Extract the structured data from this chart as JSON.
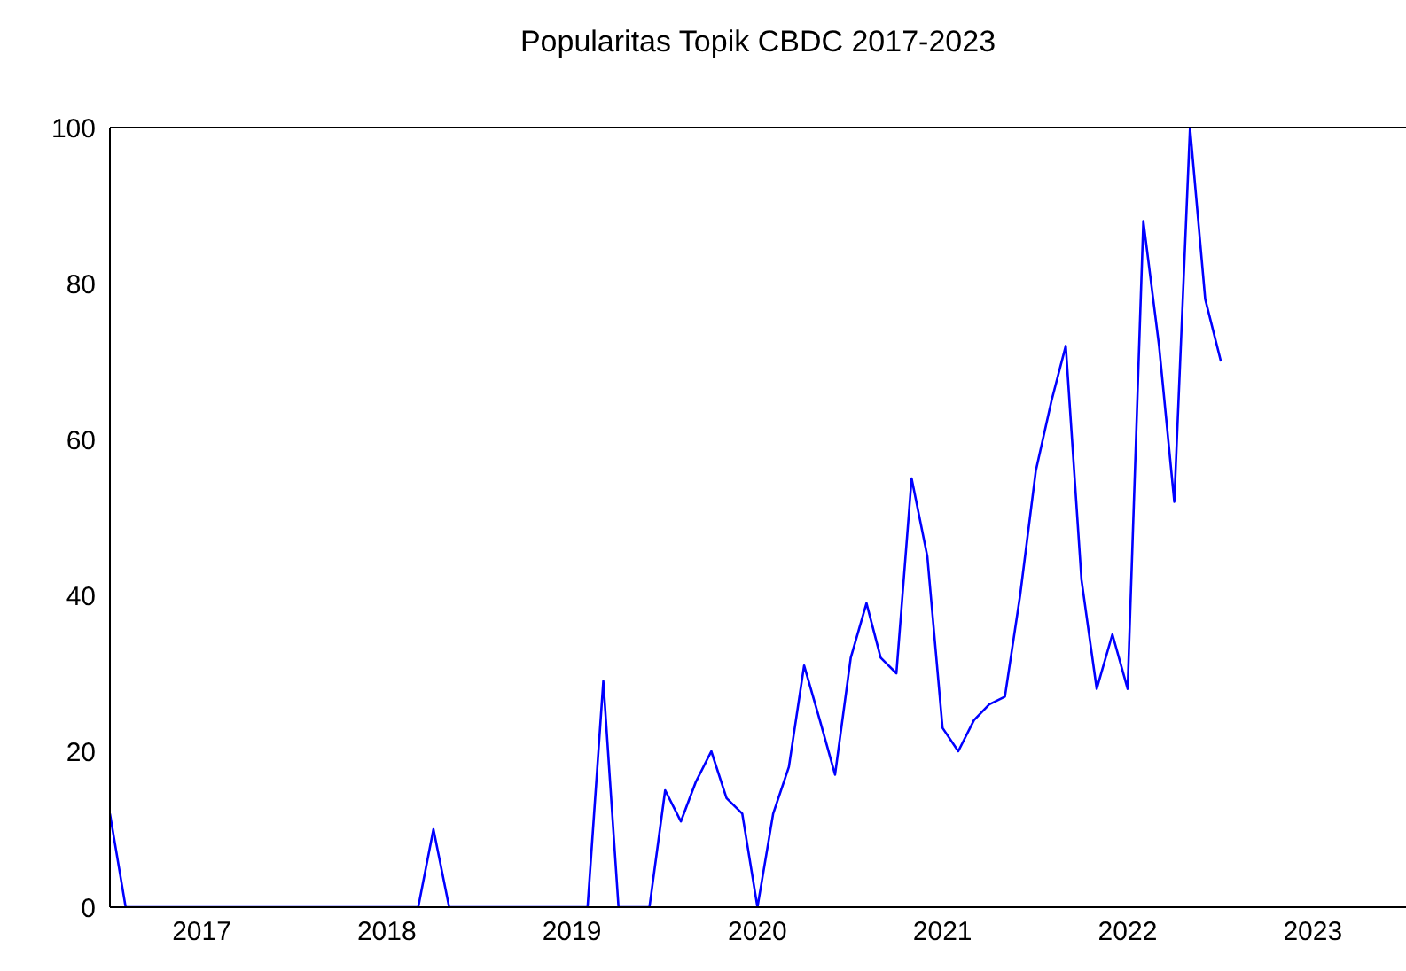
{
  "chart_data": {
    "type": "line",
    "title": "Popularitas Topik CBDC 2017-2023",
    "x": [
      "2017-01",
      "2017-02",
      "2017-03",
      "2017-04",
      "2017-05",
      "2017-06",
      "2017-07",
      "2017-08",
      "2017-09",
      "2017-10",
      "2017-11",
      "2017-12",
      "2018-01",
      "2018-02",
      "2018-03",
      "2018-04",
      "2018-05",
      "2018-06",
      "2018-07",
      "2018-08",
      "2018-09",
      "2018-10",
      "2018-11",
      "2018-12",
      "2019-01",
      "2019-02",
      "2019-03",
      "2019-04",
      "2019-05",
      "2019-06",
      "2019-07",
      "2019-08",
      "2019-09",
      "2019-10",
      "2019-11",
      "2019-12",
      "2020-01",
      "2020-02",
      "2020-03",
      "2020-04",
      "2020-05",
      "2020-06",
      "2020-07",
      "2020-08",
      "2020-09",
      "2020-10",
      "2020-11",
      "2020-12",
      "2021-01",
      "2021-02",
      "2021-03",
      "2021-04",
      "2021-05",
      "2021-06",
      "2021-07",
      "2021-08",
      "2021-09",
      "2021-10",
      "2021-11",
      "2021-12",
      "2022-01",
      "2022-02",
      "2022-03",
      "2022-04",
      "2022-05",
      "2022-06",
      "2022-07",
      "2022-08",
      "2022-09",
      "2022-10",
      "2022-11",
      "2022-12",
      "2023-01"
    ],
    "series": [
      {
        "color": "#0000ff",
        "values": [
          12,
          0,
          0,
          0,
          0,
          0,
          0,
          0,
          0,
          0,
          0,
          0,
          0,
          0,
          0,
          0,
          0,
          0,
          0,
          0,
          0,
          10,
          0,
          0,
          0,
          0,
          0,
          0,
          0,
          0,
          0,
          0,
          29,
          0,
          0,
          0,
          15,
          11,
          16,
          20,
          14,
          12,
          0,
          12,
          18,
          31,
          24,
          17,
          32,
          39,
          32,
          30,
          55,
          45,
          23,
          20,
          24,
          26,
          27,
          40,
          56,
          65,
          72,
          42,
          28,
          35,
          28,
          88,
          72,
          52,
          100,
          78,
          70
        ]
      }
    ],
    "xlim": [
      "2017-01",
      "2024-01"
    ],
    "xticks": [
      {
        "value": "2017-07",
        "label": "2017"
      },
      {
        "value": "2018-07",
        "label": "2018"
      },
      {
        "value": "2019-07",
        "label": "2019"
      },
      {
        "value": "2020-07",
        "label": "2020"
      },
      {
        "value": "2021-07",
        "label": "2021"
      },
      {
        "value": "2022-07",
        "label": "2022"
      },
      {
        "value": "2023-07",
        "label": "2023"
      }
    ],
    "ylim": [
      0,
      100
    ],
    "yticks": [
      0,
      20,
      40,
      60,
      80,
      100
    ],
    "grid": false,
    "legend": false,
    "marker": "none",
    "line_style": "solid"
  }
}
